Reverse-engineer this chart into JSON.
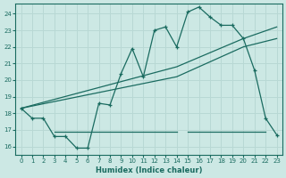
{
  "bg_color": "#cce8e4",
  "grid_color": "#b8d8d4",
  "line_color": "#1a6b60",
  "xlabel": "Humidex (Indice chaleur)",
  "xlim": [
    -0.5,
    23.5
  ],
  "ylim": [
    15.5,
    24.6
  ],
  "yticks": [
    16,
    17,
    18,
    19,
    20,
    21,
    22,
    23,
    24
  ],
  "xticks": [
    0,
    1,
    2,
    3,
    4,
    5,
    6,
    7,
    8,
    9,
    10,
    11,
    12,
    13,
    14,
    15,
    16,
    17,
    18,
    19,
    20,
    21,
    22,
    23
  ],
  "line1_x": [
    0,
    1,
    2,
    3,
    4,
    5,
    6,
    7,
    8,
    9,
    10,
    11,
    12,
    13,
    14,
    15,
    16,
    17,
    18,
    19,
    20,
    21,
    22,
    23
  ],
  "line1_y": [
    18.3,
    17.7,
    17.7,
    16.6,
    16.6,
    15.9,
    15.9,
    18.6,
    18.5,
    20.4,
    21.9,
    20.2,
    23.0,
    23.2,
    22.0,
    24.1,
    24.4,
    23.8,
    23.3,
    23.3,
    22.5,
    20.6,
    17.7,
    16.7
  ],
  "line2_x": [
    0,
    14,
    20,
    23
  ],
  "line2_y": [
    18.3,
    20.8,
    22.5,
    23.2
  ],
  "line3_x": [
    0,
    14,
    20,
    23
  ],
  "line3_y": [
    18.3,
    20.2,
    22.0,
    22.5
  ],
  "hline_x": [
    3,
    4,
    5,
    6,
    7,
    14
  ],
  "hline_y": [
    16.9,
    16.9,
    16.9,
    16.9,
    16.9,
    16.9
  ],
  "hline2_x": [
    15,
    22
  ],
  "hline2_y": [
    16.9,
    16.9
  ]
}
